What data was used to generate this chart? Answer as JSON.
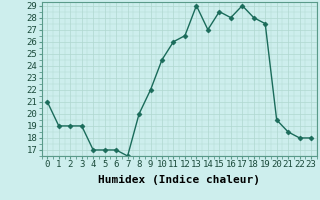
{
  "x": [
    0,
    1,
    2,
    3,
    4,
    5,
    6,
    7,
    8,
    9,
    10,
    11,
    12,
    13,
    14,
    15,
    16,
    17,
    18,
    19,
    20,
    21,
    22,
    23
  ],
  "y": [
    21,
    19,
    19,
    19,
    17,
    17,
    17,
    16.5,
    20,
    22,
    24.5,
    26,
    26.5,
    29,
    27,
    28.5,
    28,
    29,
    28,
    27.5,
    19.5,
    18.5,
    18,
    18
  ],
  "line_color": "#1a6b5a",
  "marker": "D",
  "marker_size": 2.5,
  "bg_color": "#cdeeed",
  "grid_color": "#b0d8d0",
  "xlabel": "Humidex (Indice chaleur)",
  "ylim": [
    16.8,
    29.3
  ],
  "xlim": [
    -0.5,
    23.5
  ],
  "yticks": [
    17,
    18,
    19,
    20,
    21,
    22,
    23,
    24,
    25,
    26,
    27,
    28,
    29
  ],
  "xticks": [
    0,
    1,
    2,
    3,
    4,
    5,
    6,
    7,
    8,
    9,
    10,
    11,
    12,
    13,
    14,
    15,
    16,
    17,
    18,
    19,
    20,
    21,
    22,
    23
  ],
  "xtick_labels": [
    "0",
    "1",
    "2",
    "3",
    "4",
    "5",
    "6",
    "7",
    "8",
    "9",
    "10",
    "11",
    "12",
    "13",
    "14",
    "15",
    "16",
    "17",
    "18",
    "19",
    "20",
    "21",
    "22",
    "23"
  ],
  "xlabel_fontsize": 8,
  "tick_fontsize": 6.5,
  "line_width": 1.0
}
